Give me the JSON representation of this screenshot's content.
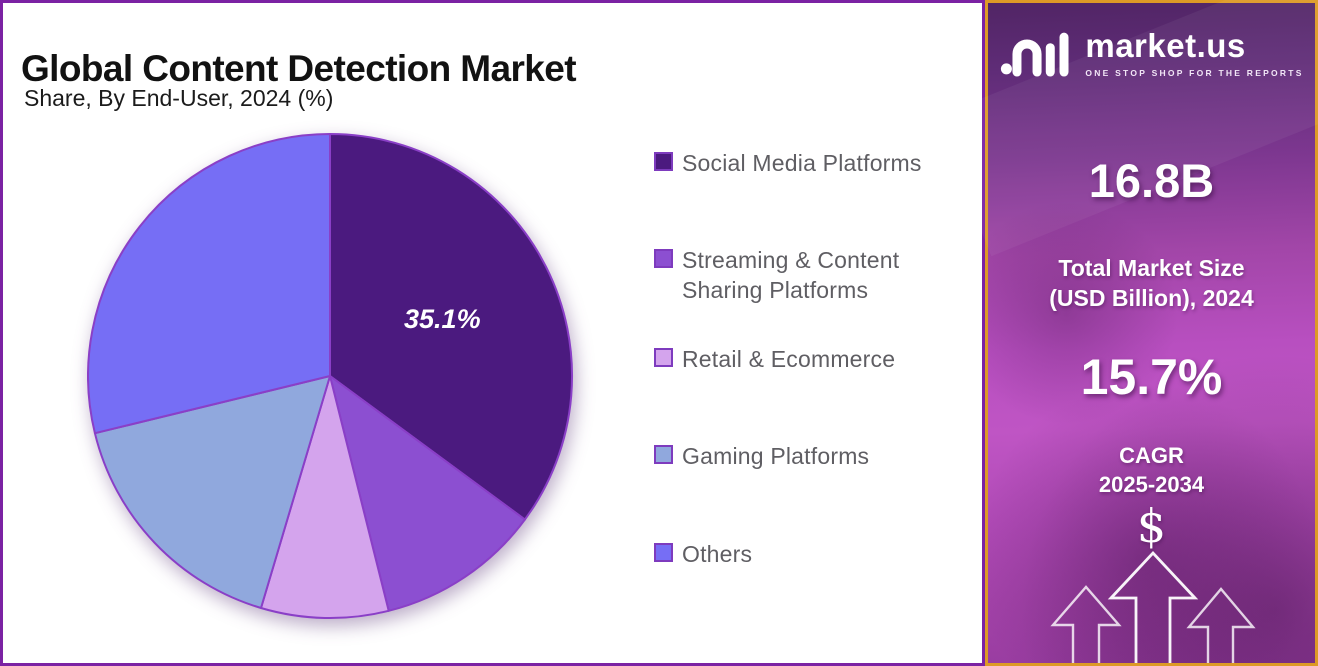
{
  "header": {
    "title": "Global Content Detection Market",
    "subtitle": "Share, By End-User, 2024 (%)"
  },
  "chart_data": {
    "type": "pie",
    "title": "Global Content Detection Market",
    "subtitle": "Share, By End-User, 2024 (%)",
    "unit": "%",
    "start_angle_deg": 0,
    "direction": "clockwise",
    "stroke_color": "#8A3FC7",
    "label_color": "#FFFFFF",
    "legend_position": "right",
    "slices": [
      {
        "label": "Social Media Platforms",
        "value": 35.1,
        "color": "#4B1A7F",
        "display_label": "35.1%"
      },
      {
        "label": "Streaming & Content Sharing Platforms",
        "value": 11.0,
        "color": "#8C4FD1",
        "display_label": ""
      },
      {
        "label": "Retail & Ecommerce",
        "value": 8.5,
        "color": "#D4A4ED",
        "display_label": ""
      },
      {
        "label": "Gaming Platforms",
        "value": 16.6,
        "color": "#90A8DD",
        "display_label": ""
      },
      {
        "label": "Others",
        "value": 28.8,
        "color": "#766EF5",
        "display_label": ""
      }
    ]
  },
  "sidebar": {
    "brand": "market.us",
    "tagline": "ONE STOP SHOP FOR THE REPORTS",
    "market_size": {
      "value": "16.8B",
      "label_line1": "Total Market Size",
      "label_line2": "(USD Billion), 2024"
    },
    "cagr": {
      "value": "15.7%",
      "label_line1": "CAGR",
      "label_line2": "2025-2034"
    },
    "dollar_symbol": "$"
  },
  "colors": {
    "page_border": "#7B22A3",
    "sidebar_border": "#DD9A26",
    "legend_text": "#5F5E63",
    "title_text": "#121212"
  }
}
